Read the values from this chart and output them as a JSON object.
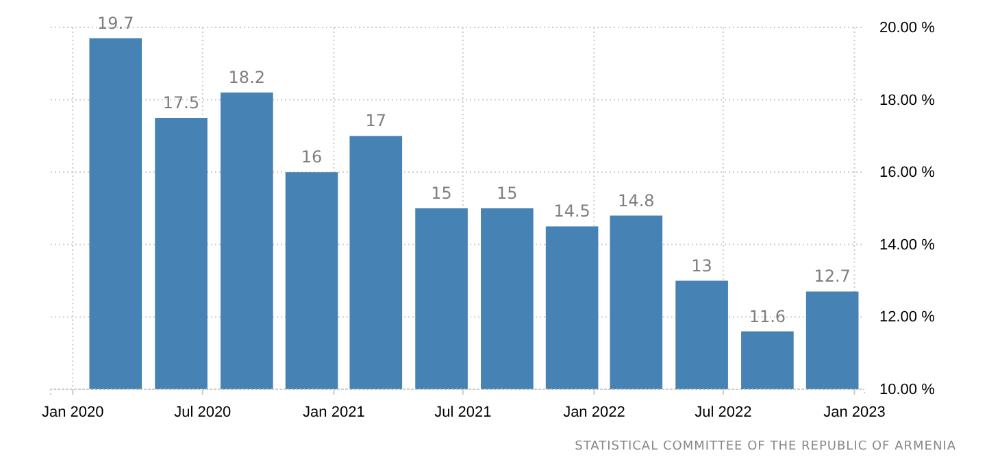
{
  "chart_data": {
    "type": "bar",
    "x": [
      "2020-03",
      "2020-06",
      "2020-09",
      "2020-12",
      "2021-03",
      "2021-06",
      "2021-09",
      "2021-12",
      "2022-03",
      "2022-06",
      "2022-09",
      "2022-12"
    ],
    "values": [
      19.7,
      17.5,
      18.2,
      16,
      17,
      15,
      15,
      14.5,
      14.8,
      13,
      11.6,
      12.7
    ],
    "color": "#4682b4",
    "xlim": [
      "2019-12",
      "2023-01-15"
    ],
    "xticks": [
      {
        "value": "2020-01",
        "label": "Jan 2020"
      },
      {
        "value": "2020-07",
        "label": "Jul 2020"
      },
      {
        "value": "2021-01",
        "label": "Jan 2021"
      },
      {
        "value": "2021-07",
        "label": "Jul 2021"
      },
      {
        "value": "2022-01",
        "label": "Jan 2022"
      },
      {
        "value": "2022-07",
        "label": "Jul 2022"
      },
      {
        "value": "2023-01",
        "label": "Jan 2023"
      }
    ],
    "ylim": [
      10,
      20
    ],
    "yticks": [
      {
        "value": 10,
        "label": "10.00 %"
      },
      {
        "value": 12,
        "label": "12.00 %"
      },
      {
        "value": 14,
        "label": "14.00 %"
      },
      {
        "value": 16,
        "label": "16.00 %"
      },
      {
        "value": 18,
        "label": "18.00 %"
      },
      {
        "value": 20,
        "label": "20.00 %"
      }
    ],
    "grid": true,
    "data_labels": true,
    "annotations": [
      "STATISTICAL COMMITTEE OF THE REPUBLIC OF ARMENIA"
    ]
  }
}
